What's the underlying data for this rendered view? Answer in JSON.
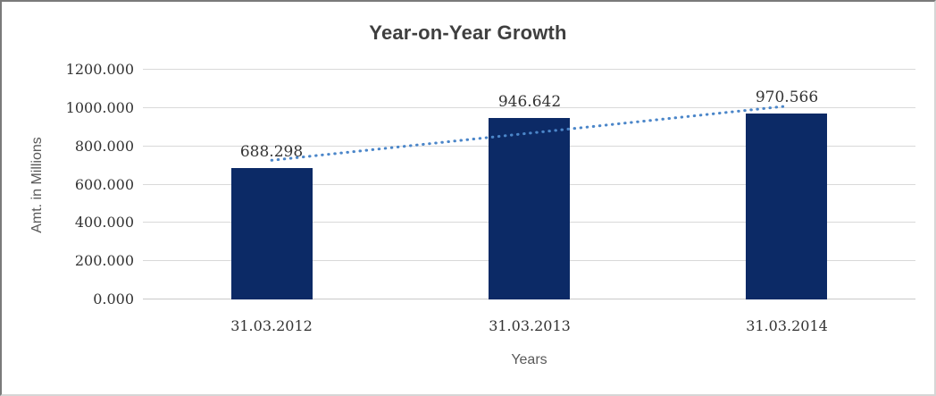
{
  "chart_data": {
    "type": "bar",
    "title": "Year-on-Year Growth",
    "xlabel": "Years",
    "ylabel": "Amt. in Millions",
    "categories": [
      "31.03.2012",
      "31.03.2013",
      "31.03.2014"
    ],
    "values": [
      688.298,
      946.642,
      970.566
    ],
    "data_labels": [
      "688.298",
      "946.642",
      "970.566"
    ],
    "ylim": [
      0,
      1200
    ],
    "ytick_step": 200,
    "ytick_labels": [
      "0.000",
      "200.000",
      "400.000",
      "600.000",
      "800.000",
      "1000.000",
      "1200.000"
    ],
    "grid": true,
    "legend": "none",
    "trendline": {
      "type": "linear",
      "style": "dotted",
      "start_value": 727,
      "end_value": 1010
    },
    "colors": {
      "bar": "#0c2a66",
      "trendline": "#4b86c9",
      "gridline": "#d9d9d9",
      "baseline": "#c9c9c9",
      "title_text": "#3f3f3f",
      "axis_title_text": "#595959",
      "tick_label_text": "#333333",
      "data_label_text": "#333333"
    }
  }
}
